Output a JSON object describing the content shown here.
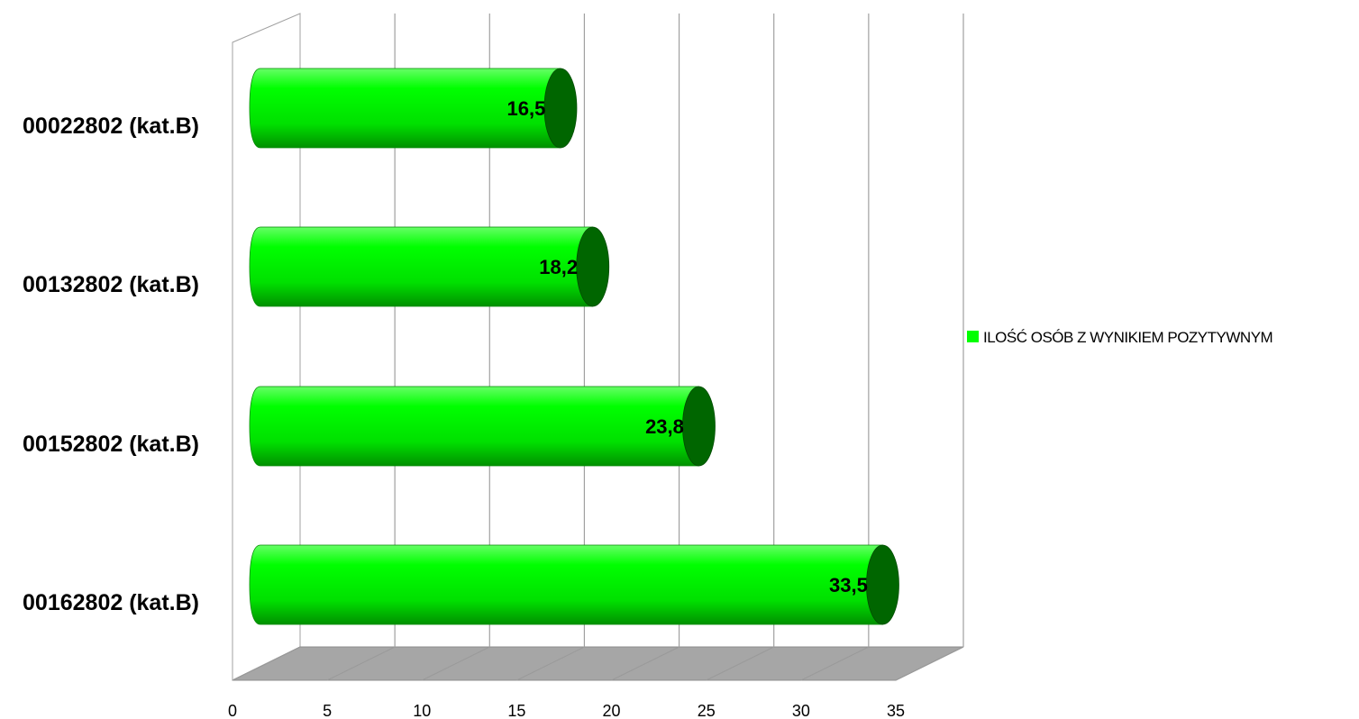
{
  "chart_data": {
    "type": "bar",
    "orientation": "horizontal",
    "style": "3d-cylinder",
    "categories": [
      "00022802 (kat.B)",
      "00132802 (kat.B)",
      "00152802 (kat.B)",
      "00162802 (kat.B)"
    ],
    "series": [
      {
        "name": "ILOŚĆ OSÓB Z WYNIKIEM POZYTYWNYM",
        "values": [
          16.5,
          18.2,
          23.8,
          33.5
        ],
        "labels": [
          "16,5",
          "18,2",
          "23,8",
          "33,5"
        ]
      }
    ],
    "xticks": [
      "0",
      "5",
      "10",
      "15",
      "20",
      "25",
      "30",
      "35"
    ],
    "xlim": [
      0,
      35
    ],
    "grid": "vertical",
    "legend": "right",
    "colors": {
      "bar_front": "#00ff00",
      "bar_dark": "#007a00",
      "bar_cap": "#006600",
      "floor": "#a6a6a6",
      "grid": "#a0a0a0"
    }
  }
}
